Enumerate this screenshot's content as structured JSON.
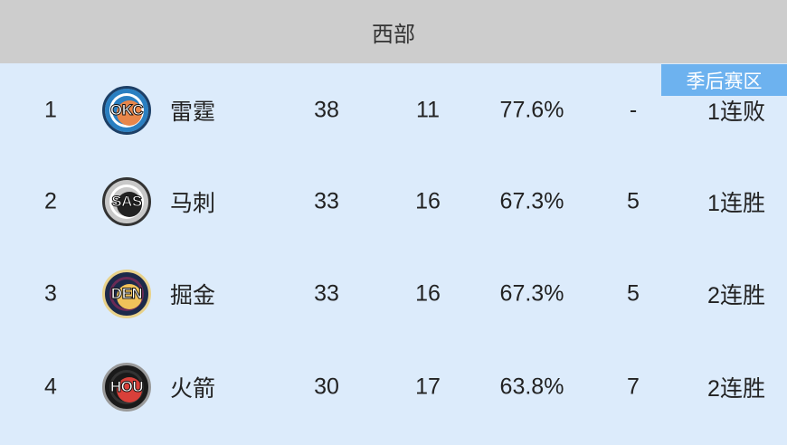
{
  "header": {
    "title": "西部"
  },
  "badge": {
    "label": "季后赛区"
  },
  "colors": {
    "header_bg": "#cdcdcd",
    "body_bg": "#dcebfb",
    "badge_bg": "#6db2ef"
  },
  "rows": [
    {
      "rank": "1",
      "abbr": "OKC",
      "name": "雷霆",
      "wins": "38",
      "losses": "11",
      "pct": "77.6%",
      "gb": "-",
      "streak": "1连败",
      "logo": {
        "outer": "#2a7fc1",
        "ring": "#ffffff",
        "inner": "#e8864a",
        "edge": "#1d3f66"
      }
    },
    {
      "rank": "2",
      "abbr": "SAS",
      "name": "马刺",
      "wins": "33",
      "losses": "16",
      "pct": "67.3%",
      "gb": "5",
      "streak": "1连胜",
      "logo": {
        "outer": "#c8c8c8",
        "ring": "#ffffff",
        "inner": "#222222",
        "edge": "#333333"
      }
    },
    {
      "rank": "3",
      "abbr": "DEN",
      "name": "掘金",
      "wins": "33",
      "losses": "16",
      "pct": "67.3%",
      "gb": "5",
      "streak": "2连胜",
      "logo": {
        "outer": "#1c2a4a",
        "ring": "#6a2a55",
        "inner": "#f1c25a",
        "edge": "#e8d28a"
      }
    },
    {
      "rank": "4",
      "abbr": "HOU",
      "name": "火箭",
      "wins": "30",
      "losses": "17",
      "pct": "63.8%",
      "gb": "7",
      "streak": "2连胜",
      "logo": {
        "outer": "#1a1a1a",
        "ring": "#333333",
        "inner": "#d9403a",
        "edge": "#999999"
      }
    }
  ]
}
